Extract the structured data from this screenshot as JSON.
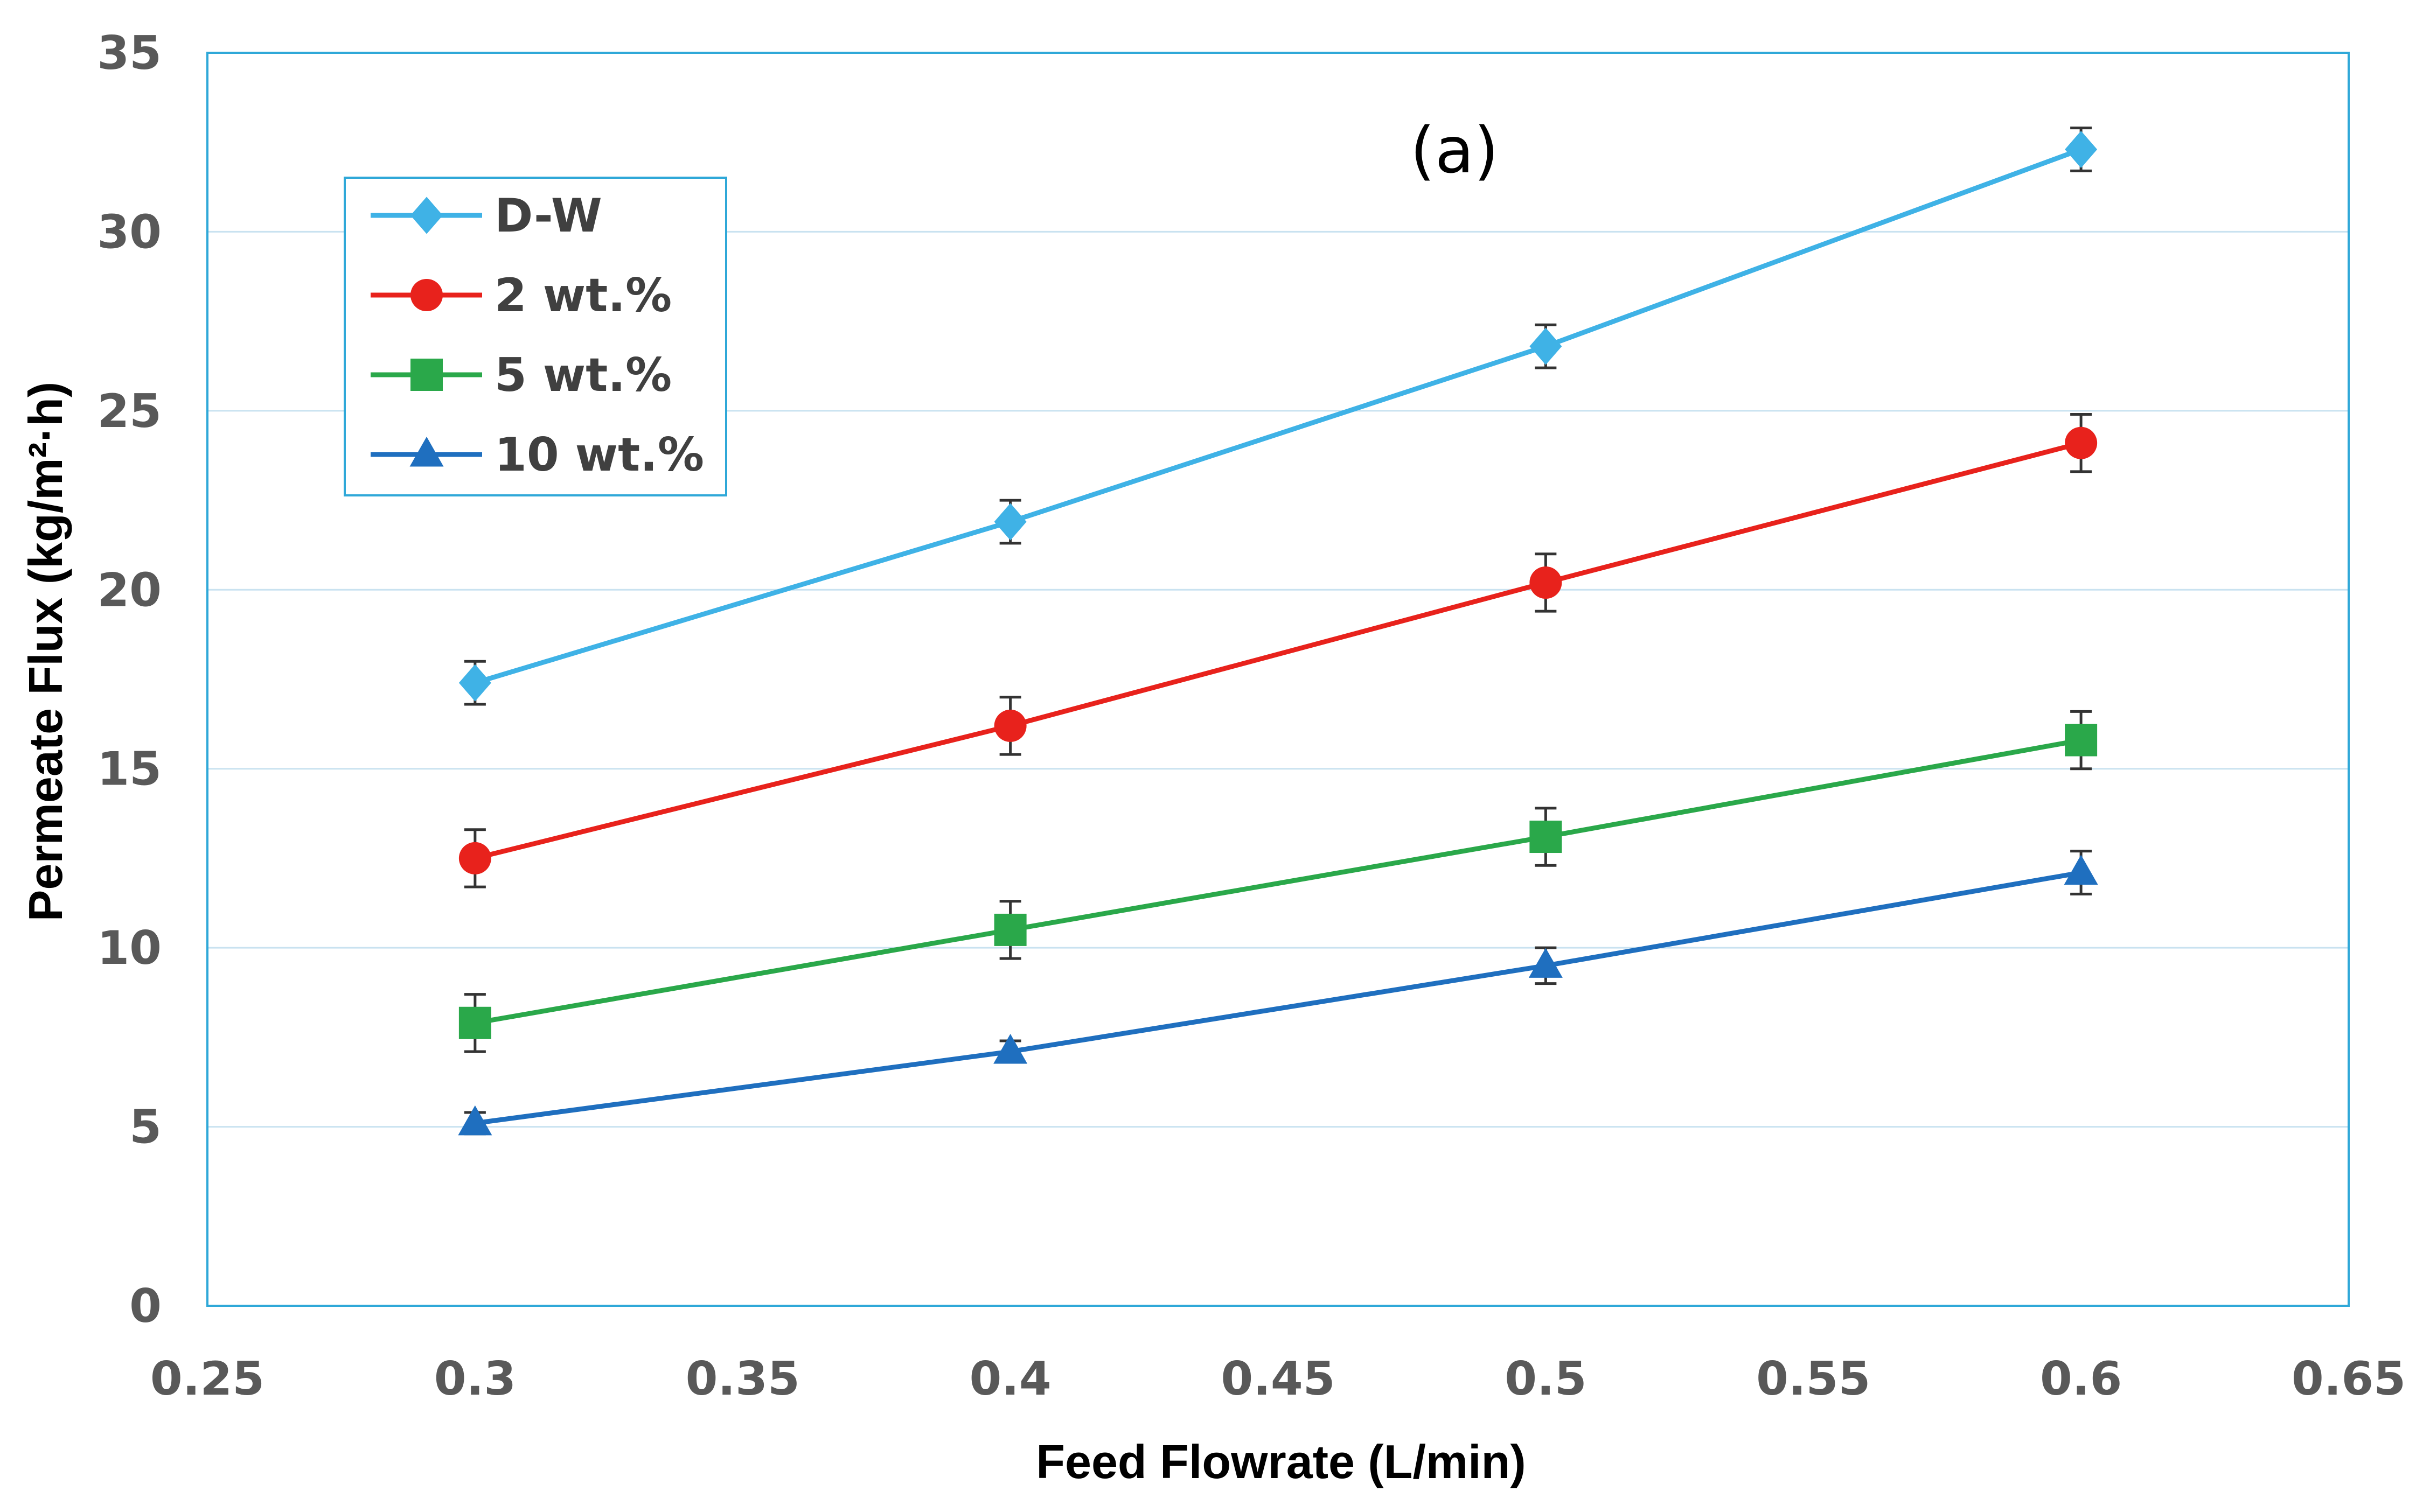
{
  "chart_data": {
    "type": "line",
    "title": "",
    "panel_label": "(a)",
    "xlabel": "Feed Flowrate (L/min)",
    "ylabel": "Permeate Flux (kg/m²·h)",
    "xlim": [
      0.25,
      0.65
    ],
    "ylim": [
      0,
      35
    ],
    "xticks": [
      0.25,
      0.3,
      0.35,
      0.4,
      0.45,
      0.5,
      0.55,
      0.6,
      0.65
    ],
    "xtick_labels": [
      "0.25",
      "0.3",
      "0.35",
      "0.4",
      "0.45",
      "0.5",
      "0.55",
      "0.6",
      "0.65"
    ],
    "yticks": [
      0,
      5,
      10,
      15,
      20,
      25,
      30,
      35
    ],
    "ytick_labels": [
      "0",
      "5",
      "10",
      "15",
      "20",
      "25",
      "30",
      "35"
    ],
    "grid": "horizontal",
    "legend_position": "top-left",
    "x": [
      0.3,
      0.4,
      0.5,
      0.6
    ],
    "series": [
      {
        "name": "D-W",
        "color": "#3fb2e6",
        "marker": "diamond",
        "values": [
          17.4,
          21.9,
          26.8,
          32.3
        ],
        "error": [
          0.6,
          0.6,
          0.6,
          0.6
        ]
      },
      {
        "name": "2 wt.%",
        "color": "#e8221c",
        "marker": "circle",
        "values": [
          12.5,
          16.2,
          20.2,
          24.1
        ],
        "error": [
          0.8,
          0.8,
          0.8,
          0.8
        ]
      },
      {
        "name": "5 wt.%",
        "color": "#2aa84a",
        "marker": "square",
        "values": [
          7.9,
          10.5,
          13.1,
          15.8
        ],
        "error": [
          0.8,
          0.8,
          0.8,
          0.8
        ]
      },
      {
        "name": "10 wt.%",
        "color": "#1f6fbf",
        "marker": "triangle",
        "values": [
          5.1,
          7.1,
          9.5,
          12.1
        ],
        "error": [
          0.3,
          0.3,
          0.5,
          0.6
        ]
      }
    ]
  }
}
